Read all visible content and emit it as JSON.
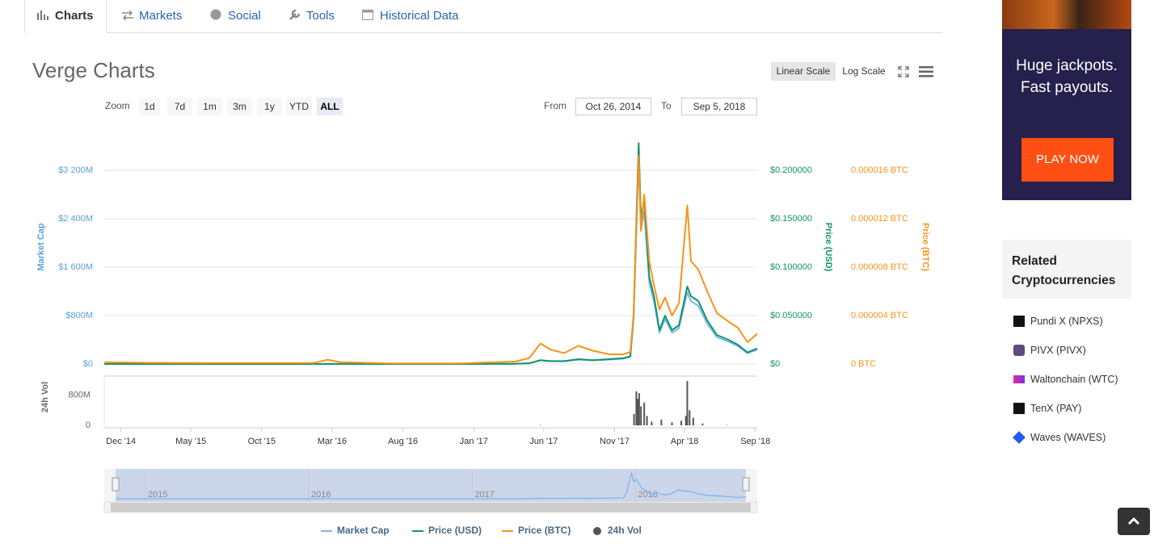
{
  "tabs": [
    "Charts",
    "Markets",
    "Social",
    "Tools",
    "Historical Data"
  ],
  "title": "Verge Charts",
  "scale_buttons": [
    "Linear Scale",
    "Log Scale"
  ],
  "zoom": {
    "label": "Zoom",
    "buttons": [
      "1d",
      "7d",
      "1m",
      "3m",
      "1y",
      "YTD",
      "ALL"
    ]
  },
  "range": {
    "from_label": "From",
    "from": "Oct 26, 2014",
    "to_label": "To",
    "to": "Sep 5, 2018"
  },
  "chart_data": {
    "type": "line",
    "x": [
      "2014-10-26",
      "2015-02-01",
      "2015-06-01",
      "2015-10-01",
      "2016-01-20",
      "2016-02-20",
      "2016-03-20",
      "2016-07-01",
      "2016-12-01",
      "2017-04-01",
      "2017-05-01",
      "2017-05-25",
      "2017-06-15",
      "2017-07-15",
      "2017-08-15",
      "2017-09-15",
      "2017-10-20",
      "2017-11-20",
      "2017-12-05",
      "2017-12-12",
      "2017-12-23",
      "2017-12-28",
      "2018-01-04",
      "2018-01-15",
      "2018-01-25",
      "2018-02-06",
      "2018-02-18",
      "2018-03-05",
      "2018-03-20",
      "2018-04-07",
      "2018-04-15",
      "2018-05-01",
      "2018-05-20",
      "2018-06-10",
      "2018-07-05",
      "2018-07-25",
      "2018-08-15",
      "2018-09-05"
    ],
    "xlim": [
      "2014-10-26",
      "2018-09-05"
    ],
    "xticks": [
      {
        "value": "2014-12-01",
        "label": "Dec '14"
      },
      {
        "value": "2015-05-01",
        "label": "May '15"
      },
      {
        "value": "2015-10-01",
        "label": "Oct '15"
      },
      {
        "value": "2016-03-01",
        "label": "Mar '16"
      },
      {
        "value": "2016-08-01",
        "label": "Aug '16"
      },
      {
        "value": "2017-01-01",
        "label": "Jan '17"
      },
      {
        "value": "2017-06-01",
        "label": "Jun '17"
      },
      {
        "value": "2017-11-01",
        "label": "Nov '17"
      },
      {
        "value": "2018-04-01",
        "label": "Apr '18"
      },
      {
        "value": "2018-09-01",
        "label": "Sep '18"
      }
    ],
    "y_label": "Market Cap",
    "ylim": [
      0,
      3750
    ],
    "yticks": [
      {
        "value": 0,
        "label": "$0"
      },
      {
        "value": 800,
        "label": "$800M"
      },
      {
        "value": 1600,
        "label": "$1 600M"
      },
      {
        "value": 2400,
        "label": "$2 400M"
      },
      {
        "value": 3200,
        "label": "$3 200M"
      }
    ],
    "y2_label": "Price (USD)",
    "y2lim": [
      0,
      0.234375
    ],
    "y2ticks": [
      {
        "value": 0,
        "label": "$0"
      },
      {
        "value": 0.05,
        "label": "$0.050000"
      },
      {
        "value": 0.1,
        "label": "$0.100000"
      },
      {
        "value": 0.15,
        "label": "$0.150000"
      },
      {
        "value": 0.2,
        "label": "$0.200000"
      }
    ],
    "y3_label": "Price (BTC)",
    "y3lim": [
      0,
      1.875e-05
    ],
    "y3ticks": [
      {
        "value": 0,
        "label": "0 BTC"
      },
      {
        "value": 4e-06,
        "label": "0.000004 BTC"
      },
      {
        "value": 8e-06,
        "label": "0.000008 BTC"
      },
      {
        "value": 1.2e-05,
        "label": "0.000012 BTC"
      },
      {
        "value": 1.6e-05,
        "label": "0.000016 BTC"
      }
    ],
    "grid": true,
    "series": [
      {
        "name": "Market Cap",
        "color": "#7cb5ec",
        "axis": "y",
        "values": [
          0.74,
          0.44,
          0.3,
          0.3,
          0.3,
          2.22,
          1.18,
          0.3,
          0.3,
          2.96,
          11.84,
          59.2,
          44.4,
          44.4,
          74,
          59.2,
          74,
          88.8,
          118.4,
          740,
          3374,
          2220,
          2516,
          1332,
          1036,
          518,
          740,
          518,
          592,
          1184,
          1036,
          962,
          666,
          444,
          370,
          296,
          177.6,
          236.8
        ]
      },
      {
        "name": "Price (USD)",
        "color": "#11956c",
        "axis": "y2",
        "values": [
          5e-05,
          3e-05,
          2e-05,
          2e-05,
          2e-05,
          0.00015,
          8e-05,
          2e-05,
          2e-05,
          0.0002,
          0.0008,
          0.004,
          0.003,
          0.003,
          0.005,
          0.004,
          0.005,
          0.006,
          0.008,
          0.05,
          0.228,
          0.15,
          0.17,
          0.09,
          0.07,
          0.035,
          0.05,
          0.035,
          0.04,
          0.08,
          0.07,
          0.065,
          0.045,
          0.03,
          0.025,
          0.02,
          0.012,
          0.016
        ]
      },
      {
        "name": "Price (BTC)",
        "color": "#f7931a",
        "axis": "y3",
        "values": [
          1.5e-07,
          1e-07,
          8e-08,
          8e-08,
          8e-08,
          3.5e-07,
          1.5e-07,
          5e-08,
          5e-08,
          2e-07,
          5e-07,
          1.7e-06,
          1.2e-06,
          9e-07,
          1.5e-06,
          1.1e-06,
          8e-07,
          8e-07,
          1e-06,
          4e-06,
          1.72e-05,
          1.1e-05,
          1.4e-05,
          8.5e-06,
          6.5e-06,
          4.5e-06,
          5.5e-06,
          4e-06,
          5e-06,
          1.31e-05,
          8.5e-06,
          7.8e-06,
          6e-06,
          4.2e-06,
          3.5e-06,
          3e-06,
          1.8e-06,
          2.5e-06
        ]
      }
    ],
    "volume": {
      "name": "24h Vol",
      "color": "#555555",
      "x": [
        "2017-05-25",
        "2017-12-13",
        "2017-12-18",
        "2017-12-21",
        "2017-12-24",
        "2017-12-28",
        "2018-01-04",
        "2018-01-10",
        "2018-01-20",
        "2018-02-10",
        "2018-03-05",
        "2018-03-25",
        "2018-04-04",
        "2018-04-07",
        "2018-04-12",
        "2018-04-20",
        "2018-05-10",
        "2018-07-01"
      ],
      "values": [
        10,
        300,
        900,
        700,
        850,
        500,
        600,
        250,
        100,
        150,
        80,
        120,
        250,
        1170,
        400,
        200,
        50,
        10
      ],
      "ylim": [
        0,
        1300
      ],
      "yticks": [
        0,
        {
          "value": 800,
          "label": "800M"
        }
      ]
    },
    "navigator": {
      "xticks": [
        {
          "value": "2015-01-01",
          "label": "2015"
        },
        {
          "value": "2016-01-01",
          "label": "2016"
        },
        {
          "value": "2017-01-01",
          "label": "2017"
        },
        {
          "value": "2018-01-01",
          "label": "2018"
        }
      ]
    }
  },
  "ad": {
    "headline": [
      "Huge jackpots.",
      "Fast payouts."
    ],
    "button": "PLAY NOW"
  },
  "related": {
    "title": [
      "Related",
      "Cryptocurrencies"
    ],
    "items": [
      "Pundi X (NPXS)",
      "PIVX (PIVX)",
      "Waltonchain (WTC)",
      "TenX (PAY)",
      "Waves (WAVES)"
    ]
  }
}
